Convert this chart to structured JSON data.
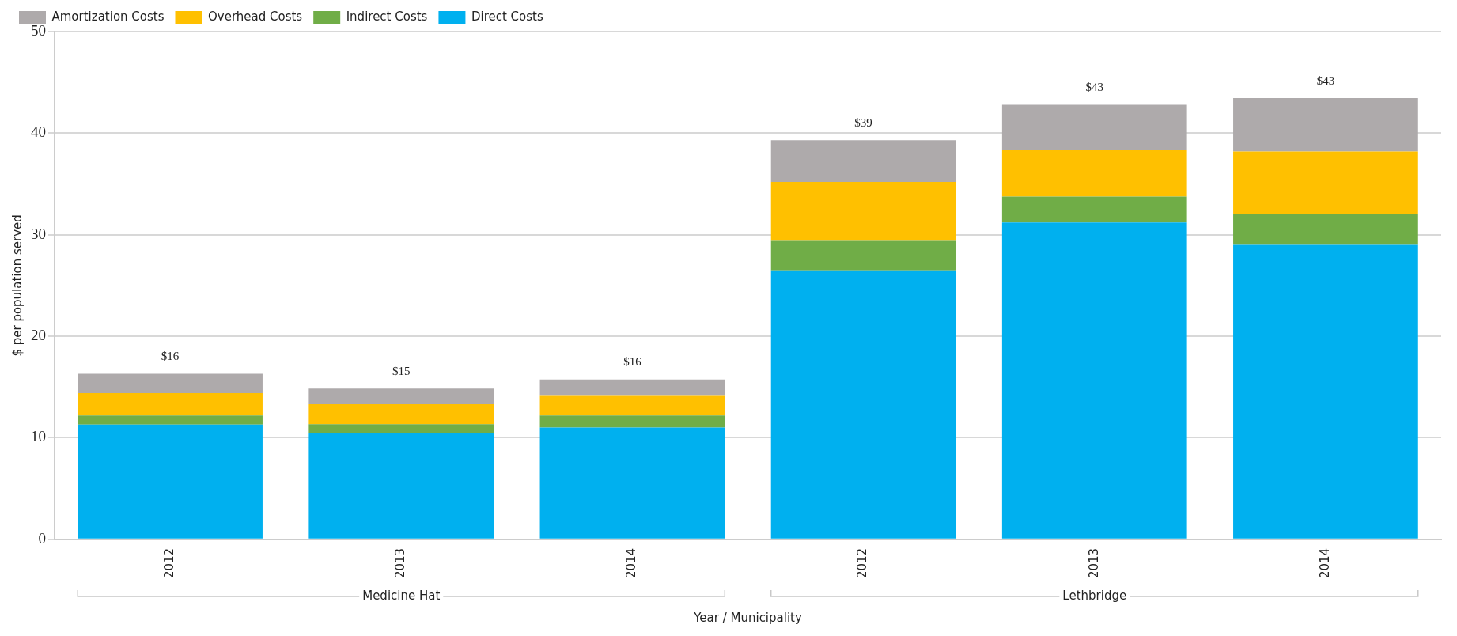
{
  "chart_data": {
    "type": "bar",
    "stacked": true,
    "xlabel": "Year / Municipality",
    "ylabel": "$ per population served",
    "categories": [
      "2012",
      "2013",
      "2014",
      "2012",
      "2013",
      "2014"
    ],
    "series": [
      {
        "name": "Direct Costs",
        "color": "#00b0ef",
        "values": [
          11.3,
          10.5,
          11.0,
          26.5,
          31.2,
          29.0
        ]
      },
      {
        "name": "Indirect Costs",
        "color": "#70ad47",
        "values": [
          0.9,
          0.85,
          1.2,
          2.9,
          2.55,
          3.0
        ]
      },
      {
        "name": "Overhead Costs",
        "color": "#ffc000",
        "values": [
          2.2,
          1.95,
          2.0,
          5.8,
          4.65,
          6.2
        ]
      },
      {
        "name": "Amortization Costs",
        "color": "#aeaaab",
        "values": [
          1.9,
          1.55,
          1.55,
          4.1,
          4.4,
          5.25
        ]
      }
    ],
    "totals": [
      "$16",
      "$15",
      "$16",
      "$39",
      "$43",
      "$43"
    ],
    "annotations": [
      "Medicine Hat",
      "Lethbridge"
    ],
    "ylim": [
      0,
      50
    ],
    "yticks": [
      0,
      10,
      20,
      30,
      40,
      50
    ],
    "grid": "y",
    "legend": "top left"
  }
}
